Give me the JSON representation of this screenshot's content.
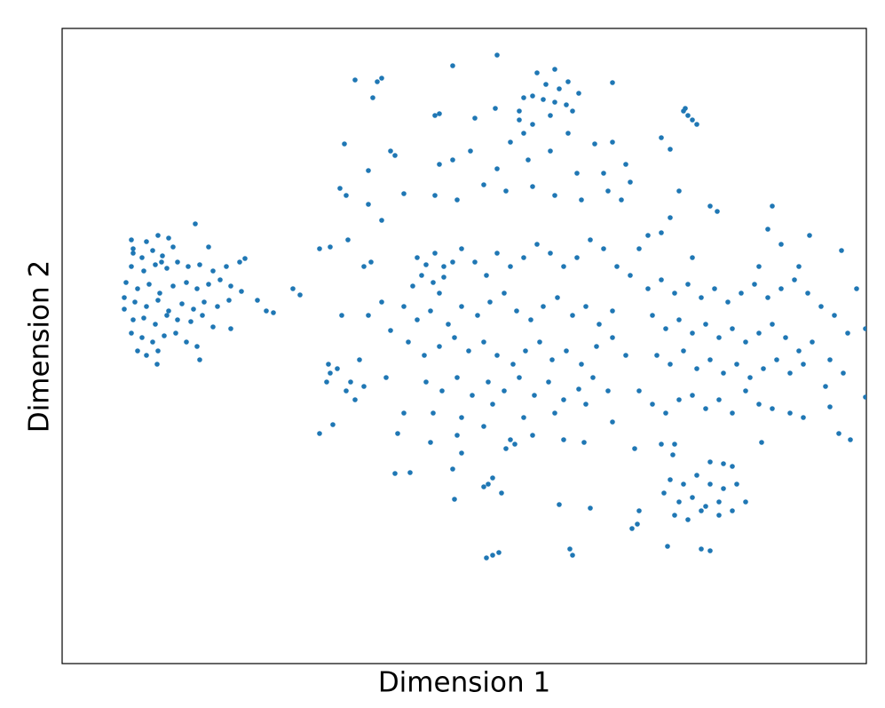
{
  "chart_data": {
    "type": "scatter",
    "xlabel": "Dimension 1",
    "ylabel": "Dimension 2",
    "color": "#1f77b4",
    "xlim": [
      70,
      976
    ],
    "ylim": [
      747,
      32
    ],
    "x": [
      148,
      165,
      178,
      190,
      220,
      150,
      160,
      172,
      183,
      195,
      148,
      162,
      175,
      188,
      200,
      212,
      225,
      240,
      255,
      270,
      276,
      142,
      155,
      168,
      180,
      195,
      210,
      222,
      235,
      248,
      260,
      272,
      140,
      152,
      165,
      178,
      190,
      205,
      218,
      230,
      245,
      258,
      290,
      300,
      308,
      140,
      150,
      162,
      175,
      188,
      200,
      215,
      228,
      240,
      260,
      148,
      160,
      172,
      185,
      198,
      210,
      222,
      155,
      165,
      178,
      225,
      177,
      150,
      182,
      235,
      605,
      625,
      615,
      630,
      640,
      652,
      600,
      612,
      625,
      638,
      645,
      590,
      620,
      585,
      600,
      560,
      510,
      690,
      400,
      425,
      430,
      420,
      770,
      775,
      780,
      785,
      772,
      490,
      495,
      535,
      558,
      585,
      590,
      575,
      640,
      670,
      690,
      440,
      445,
      388,
      415,
      495,
      510,
      530,
      560,
      595,
      620,
      650,
      680,
      705,
      710,
      383,
      390,
      415,
      430,
      455,
      490,
      515,
      545,
      570,
      600,
      625,
      655,
      685,
      700,
      745,
      755,
      765,
      800,
      808,
      755,
      745,
      470,
      480,
      490,
      500,
      510,
      475,
      488,
      500,
      465,
      495,
      520,
      535,
      548,
      560,
      575,
      590,
      605,
      620,
      635,
      650,
      665,
      680,
      695,
      710,
      455,
      470,
      485,
      505,
      520,
      538,
      552,
      568,
      582,
      598,
      612,
      628,
      645,
      660,
      675,
      690,
      460,
      478,
      495,
      512,
      528,
      545,
      560,
      578,
      592,
      608,
      622,
      638,
      655,
      672,
      690,
      705,
      480,
      498,
      515,
      532,
      550,
      568,
      585,
      602,
      618,
      635,
      652,
      668,
      685,
      455,
      488,
      520,
      555,
      590,
      625,
      660,
      690,
      515,
      545,
      575,
      580,
      570,
      600,
      635,
      658,
      485,
      430,
      440,
      415,
      385,
      360,
      372,
      392,
      410,
      418,
      435,
      448,
      445,
      462,
      510,
      520,
      550,
      555,
      545,
      565,
      512,
      630,
      665,
      642,
      645,
      548,
      555,
      562,
      360,
      375,
      390,
      395,
      400,
      410,
      370,
      372,
      368,
      380,
      405,
      330,
      338,
      730,
      745,
      760,
      775,
      790,
      805,
      820,
      835,
      850,
      865,
      880,
      895,
      910,
      925,
      940,
      965,
      735,
      750,
      765,
      780,
      795,
      810,
      825,
      840,
      855,
      870,
      885,
      900,
      915,
      935,
      955,
      975,
      740,
      755,
      770,
      785,
      800,
      815,
      830,
      845,
      860,
      875,
      890,
      905,
      930,
      950,
      975,
      720,
      735,
      750,
      765,
      780,
      795,
      810,
      825,
      840,
      855,
      870,
      890,
      905,
      935,
      945,
      958,
      858,
      865,
      870,
      880,
      912,
      948,
      855,
      780,
      720,
      730,
      900,
      760,
      758,
      800,
      815,
      825,
      755,
      770,
      785,
      800,
      815,
      830,
      748,
      765,
      780,
      795,
      810,
      825,
      840,
      760,
      775,
      790,
      810,
      720,
      718,
      712,
      752,
      790,
      800,
      715,
      745
    ],
    "y": [
      270,
      272,
      265,
      268,
      252,
      285,
      290,
      282,
      288,
      278,
      300,
      305,
      298,
      302,
      295,
      300,
      298,
      305,
      300,
      295,
      291,
      318,
      325,
      320,
      330,
      322,
      318,
      325,
      320,
      315,
      322,
      328,
      335,
      340,
      345,
      338,
      350,
      342,
      348,
      340,
      345,
      338,
      338,
      350,
      352,
      348,
      360,
      358,
      365,
      355,
      360,
      362,
      355,
      368,
      370,
      375,
      380,
      385,
      378,
      375,
      385,
      390,
      395,
      400,
      395,
      405,
      410,
      280,
      295,
      278,
      82,
      78,
      95,
      100,
      92,
      105,
      108,
      112,
      115,
      118,
      125,
      110,
      130,
      135,
      140,
      62,
      74,
      93,
      90,
      92,
      88,
      110,
      125,
      130,
      135,
      140,
      122,
      130,
      128,
      133,
      122,
      125,
      150,
      160,
      150,
      162,
      160,
      170,
      175,
      162,
      192,
      185,
      180,
      170,
      190,
      180,
      170,
      195,
      195,
      185,
      205,
      212,
      220,
      230,
      248,
      218,
      220,
      225,
      208,
      215,
      210,
      220,
      225,
      215,
      225,
      155,
      168,
      215,
      232,
      238,
      245,
      262,
      290,
      298,
      285,
      300,
      295,
      310,
      318,
      312,
      322,
      330,
      280,
      295,
      310,
      285,
      300,
      290,
      275,
      285,
      300,
      290,
      270,
      280,
      300,
      310,
      345,
      360,
      350,
      365,
      345,
      355,
      340,
      330,
      350,
      360,
      345,
      335,
      355,
      345,
      365,
      350,
      385,
      400,
      390,
      380,
      395,
      385,
      400,
      410,
      395,
      385,
      405,
      395,
      410,
      390,
      380,
      400,
      430,
      440,
      425,
      445,
      430,
      440,
      425,
      445,
      430,
      450,
      438,
      425,
      440,
      465,
      465,
      470,
      455,
      470,
      465,
      455,
      475,
      490,
      480,
      495,
      500,
      505,
      490,
      495,
      498,
      498,
      340,
      372,
      355,
      355,
      280,
      278,
      270,
      300,
      295,
      425,
      488,
      533,
      532,
      528,
      510,
      545,
      538,
      548,
      555,
      562,
      568,
      572,
      618,
      625,
      628,
      625,
      622,
      488,
      478,
      440,
      430,
      450,
      435,
      410,
      420,
      430,
      415,
      405,
      325,
      332,
      325,
      315,
      330,
      320,
      335,
      325,
      340,
      330,
      320,
      335,
      325,
      315,
      330,
      345,
      355,
      325,
      355,
      370,
      360,
      375,
      365,
      380,
      370,
      385,
      375,
      365,
      380,
      395,
      385,
      405,
      375,
      370,
      400,
      410,
      395,
      415,
      405,
      420,
      410,
      425,
      415,
      405,
      420,
      410,
      435,
      420,
      447,
      440,
      455,
      465,
      450,
      445,
      460,
      450,
      465,
      440,
      455,
      460,
      465,
      470,
      458,
      488,
      495,
      498,
      258,
      232,
      275,
      265,
      282,
      300,
      290,
      280,
      265,
      300,
      500,
      512,
      520,
      522,
      525,
      540,
      545,
      535,
      545,
      550,
      545,
      555,
      565,
      560,
      570,
      565,
      575,
      565,
      580,
      585,
      575,
      580,
      575,
      590,
      595,
      615,
      618,
      620,
      505,
      500
    ]
  }
}
